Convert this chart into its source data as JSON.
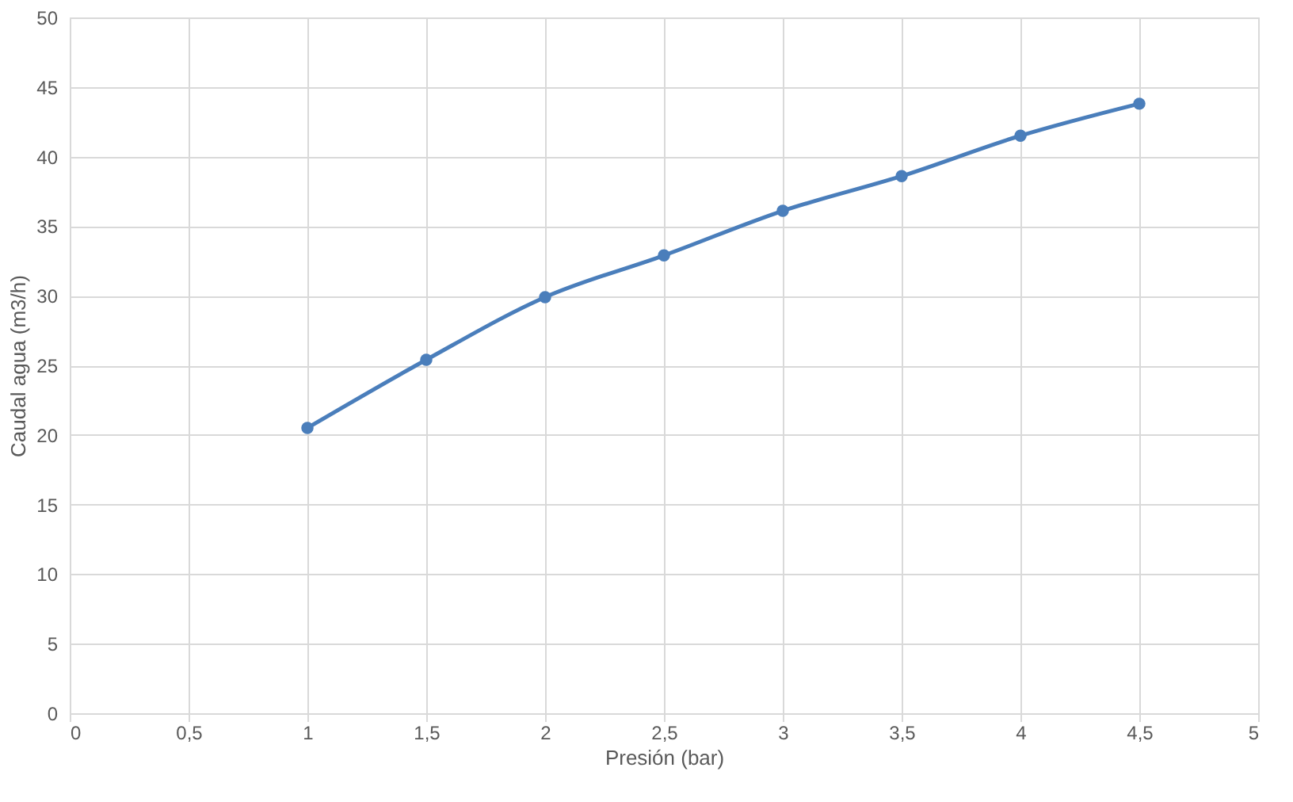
{
  "chart_data": {
    "type": "line",
    "xlabel": "Presión (bar)",
    "ylabel": "Caudal agua (m3/h)",
    "x": [
      1,
      1.5,
      2,
      2.5,
      3,
      3.5,
      4,
      4.5
    ],
    "series": [
      {
        "color": "#4a7ebb",
        "values": [
          20.5,
          25.4,
          29.9,
          32.9,
          36.1,
          38.6,
          41.5,
          43.8
        ]
      }
    ],
    "xlim": [
      0,
      5
    ],
    "xticks": [
      0,
      {
        "value": 0.5,
        "label": "0,5"
      },
      1,
      {
        "value": 1.5,
        "label": "1,5"
      },
      2,
      {
        "value": 2.5,
        "label": "2,5"
      },
      3,
      {
        "value": 3.5,
        "label": "3,5"
      },
      4,
      {
        "value": 4.5,
        "label": "4,5"
      },
      5
    ],
    "ylim": [
      0,
      50
    ],
    "yticks": [
      0,
      5,
      10,
      15,
      20,
      25,
      30,
      35,
      40,
      45,
      50
    ],
    "grid": true,
    "marker": "circle",
    "line_style": "solid"
  }
}
